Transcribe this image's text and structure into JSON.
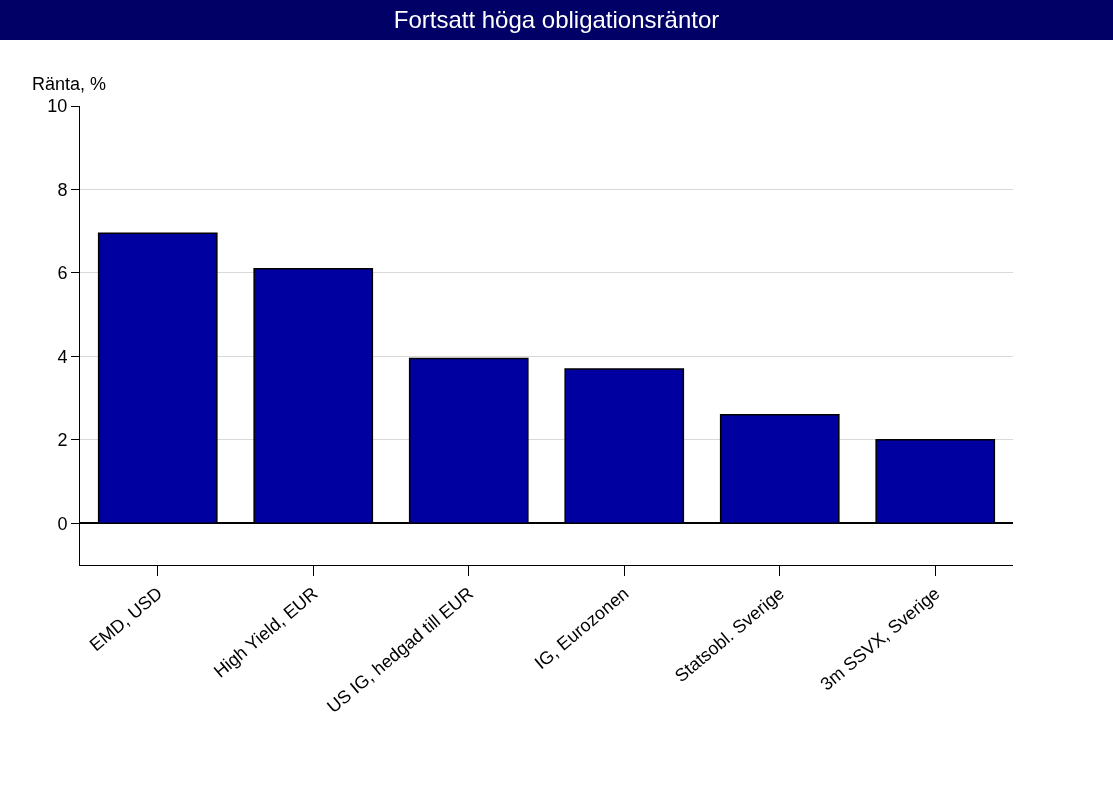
{
  "chart_data": {
    "type": "bar",
    "title": "Fortsatt höga obligationsräntor",
    "ylabel": "Ränta, %",
    "categories": [
      "EMD, USD",
      "High Yield, EUR",
      "US IG, hedgad till EUR",
      "IG, Eurozonen",
      "Statsobl. Sverige",
      "3m SSVX, Sverige"
    ],
    "values": [
      6.95,
      6.1,
      3.95,
      3.7,
      2.6,
      2.0
    ],
    "color": "#0000a0",
    "ylim": [
      -1,
      10
    ],
    "yticks": [
      0,
      2,
      4,
      6,
      8,
      10
    ],
    "grid": "y",
    "legend": false
  }
}
